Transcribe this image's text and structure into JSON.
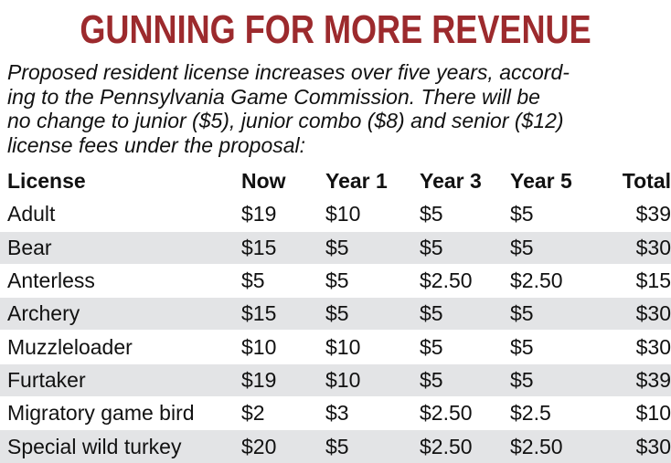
{
  "headline": "GUNNING FOR MORE REVENUE",
  "intro_lines": [
    "Proposed resident license increases over five years, accord-",
    "ing to the Pennsylvania Game Commission. There will be",
    "no change to junior ($5), junior combo ($8) and senior ($12)",
    "license fees under the proposal:"
  ],
  "colors": {
    "headline": "#9c2a2d",
    "row_shade": "#e3e4e6",
    "text": "#111111"
  },
  "chart_data": {
    "type": "table",
    "columns": [
      "License",
      "Now",
      "Year 1",
      "Year 3",
      "Year 5",
      "Total"
    ],
    "rows": [
      [
        "Adult",
        "$19",
        "$10",
        "$5",
        "$5",
        "$39"
      ],
      [
        "Bear",
        "$15",
        "$5",
        "$5",
        "$5",
        "$30"
      ],
      [
        "Anterless",
        "$5",
        "$5",
        "$2.50",
        "$2.50",
        "$15"
      ],
      [
        "Archery",
        "$15",
        "$5",
        "$5",
        "$5",
        "$30"
      ],
      [
        "Muzzleloader",
        "$10",
        "$10",
        "$5",
        "$5",
        "$30"
      ],
      [
        "Furtaker",
        "$19",
        "$10",
        "$5",
        "$5",
        "$39"
      ],
      [
        "Migratory game bird",
        "$2",
        "$3",
        "$2.50",
        "$2.5",
        "$10"
      ],
      [
        "Special wild turkey",
        "$20",
        "$5",
        "$2.50",
        "$2.50",
        "$30"
      ]
    ]
  }
}
